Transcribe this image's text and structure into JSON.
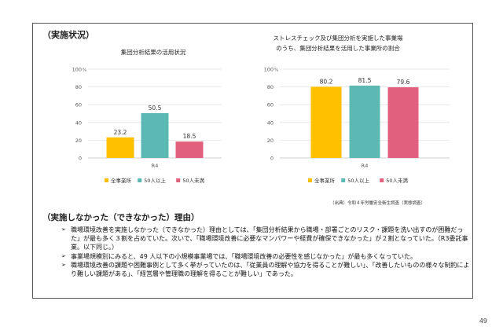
{
  "section1": {
    "heading": "（実施状況）"
  },
  "source_note": "（出典）令和４年労働安全衛生調査（実態調査）",
  "section2": {
    "heading": "（実施しなかった（できなかった）理由）",
    "bullets": [
      "職場環境改善を実施しなかった（できなかった）理由としては、「集団分析結果から職場・部署ごとのリスク・課題を洗い出すのが困難だった」が最も多く３割を占めていた。次いで、「職場環境改善に必要なマンパワーや経費が確保できなかった」が２割となっていた。（R3委託事業。以下同じ。）",
      "事業場規模別にみると、49 人以下の小規模事業場では、「職場環境改善の必要性を感じなかった」が最も多くなっていた。",
      "職場環境改善の課題や困難事例として多く挙がっていたのは、「従業員の理解や協力を得ることが難しい」、「改善したいものの様々な制約により難しい課題がある」、「経営層や管理職の理解を得ることが難しい」であった。"
    ]
  },
  "page_number": "49",
  "chart_data": [
    {
      "type": "bar",
      "title": "集団分析結果の活用状況",
      "categories": [
        "R4"
      ],
      "ylim": [
        0,
        100
      ],
      "yticks": [
        0,
        20,
        40,
        60,
        80,
        100
      ],
      "y_unit": "%",
      "grid": true,
      "legend_position": "bottom",
      "series": [
        {
          "name": "全事業所",
          "values": [
            23.2
          ],
          "color": "#FFC000"
        },
        {
          "name": "50人以上",
          "values": [
            50.5
          ],
          "color": "#5BB8B3"
        },
        {
          "name": "50人未満",
          "values": [
            18.5
          ],
          "color": "#E0607E"
        }
      ]
    },
    {
      "type": "bar",
      "title": "ストレスチェック及び集団分析を実施した事業場\nのうち、集団分析結果を活用した事業所の割合",
      "categories": [
        "R4"
      ],
      "ylim": [
        0,
        100
      ],
      "yticks": [
        0,
        20,
        40,
        60,
        80,
        100
      ],
      "y_unit": "%",
      "grid": true,
      "legend_position": "bottom",
      "series": [
        {
          "name": "全事業所",
          "values": [
            80.2
          ],
          "color": "#FFC000"
        },
        {
          "name": "50人以上",
          "values": [
            81.5
          ],
          "color": "#5BB8B3"
        },
        {
          "name": "50人未満",
          "values": [
            79.6
          ],
          "color": "#E0607E"
        }
      ]
    }
  ]
}
